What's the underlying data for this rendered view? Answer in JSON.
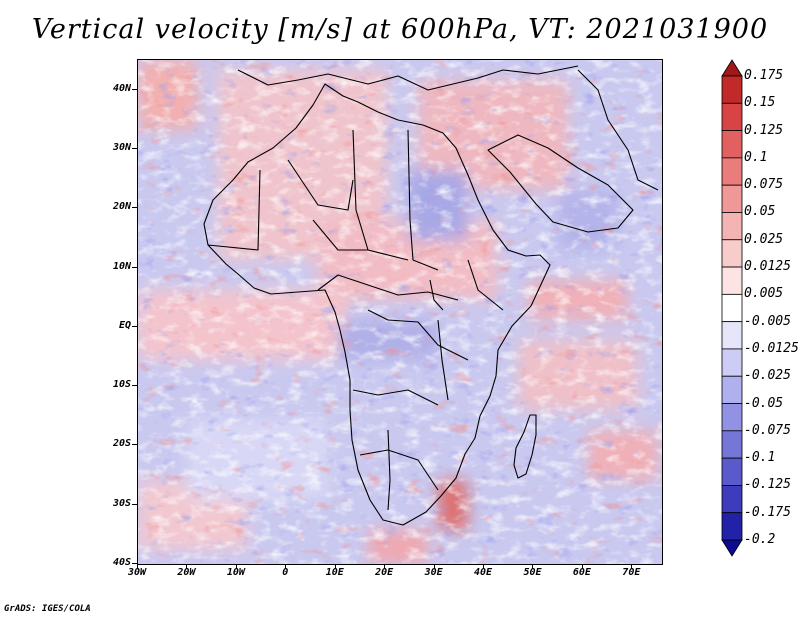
{
  "title": "Vertical velocity [m/s] at 600hPa, VT: 2021031900",
  "credit": "GrADS: IGES/COLA",
  "map": {
    "variable": "Vertical velocity",
    "units": "m/s",
    "level": "600hPa",
    "valid_time": "2021031900",
    "lon_range": [
      -30,
      76
    ],
    "lat_range": [
      -40,
      45
    ],
    "lat_ticks": [
      {
        "value": 40,
        "label": "40N"
      },
      {
        "value": 30,
        "label": "30N"
      },
      {
        "value": 20,
        "label": "20N"
      },
      {
        "value": 10,
        "label": "10N"
      },
      {
        "value": 0,
        "label": "EQ"
      },
      {
        "value": -10,
        "label": "10S"
      },
      {
        "value": -20,
        "label": "20S"
      },
      {
        "value": -30,
        "label": "30S"
      },
      {
        "value": -40,
        "label": "40S"
      }
    ],
    "lon_ticks": [
      {
        "value": -30,
        "label": "30W"
      },
      {
        "value": -20,
        "label": "20W"
      },
      {
        "value": -10,
        "label": "10W"
      },
      {
        "value": 0,
        "label": "0"
      },
      {
        "value": 10,
        "label": "10E"
      },
      {
        "value": 20,
        "label": "20E"
      },
      {
        "value": 30,
        "label": "30E"
      },
      {
        "value": 40,
        "label": "40E"
      },
      {
        "value": 50,
        "label": "50E"
      },
      {
        "value": 60,
        "label": "60E"
      },
      {
        "value": 70,
        "label": "70E"
      }
    ]
  },
  "colorbar": {
    "levels": [
      "0.175",
      "0.15",
      "0.125",
      "0.1",
      "0.075",
      "0.05",
      "0.025",
      "0.0125",
      "0.005",
      "-0.005",
      "-0.0125",
      "-0.025",
      "-0.05",
      "-0.075",
      "-0.1",
      "-0.125",
      "-0.175",
      "-0.2"
    ],
    "colors": [
      "#a01818",
      "#c22a2a",
      "#d84444",
      "#e26060",
      "#ea7c7c",
      "#f09898",
      "#f5b4b4",
      "#f9cccc",
      "#fce4e4",
      "#ffffff",
      "#e6e6fb",
      "#ccccf5",
      "#b0b0ee",
      "#9292e4",
      "#7676d8",
      "#5a5acc",
      "#3c3cbc",
      "#2222a8",
      "#0c0c90"
    ]
  }
}
